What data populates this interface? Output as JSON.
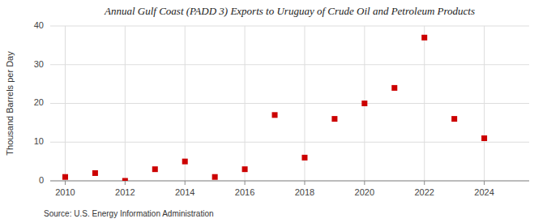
{
  "chart_data": {
    "type": "scatter",
    "title": "Annual Gulf Coast (PADD 3) Exports to Uruguay of Crude Oil and Petroleum Products",
    "ylabel": "Thousand Barrels per Day",
    "annotations": [
      "Source: U.S. Energy Information Administration"
    ],
    "x": [
      2010,
      2011,
      2012,
      2013,
      2014,
      2015,
      2016,
      2017,
      2018,
      2019,
      2020,
      2021,
      2022,
      2023,
      2024
    ],
    "values": [
      1,
      2,
      0,
      3,
      5,
      1,
      3,
      17,
      6,
      16,
      20,
      24,
      37,
      16,
      11
    ],
    "color": "#cc0000",
    "marker": "square",
    "xlim": [
      2009.5,
      2025.5
    ],
    "xticks": [
      2010,
      2012,
      2014,
      2016,
      2018,
      2020,
      2022,
      2024
    ],
    "ylim": [
      0,
      40
    ],
    "yticks": [
      0,
      10,
      20,
      30,
      40
    ],
    "grid": true
  }
}
